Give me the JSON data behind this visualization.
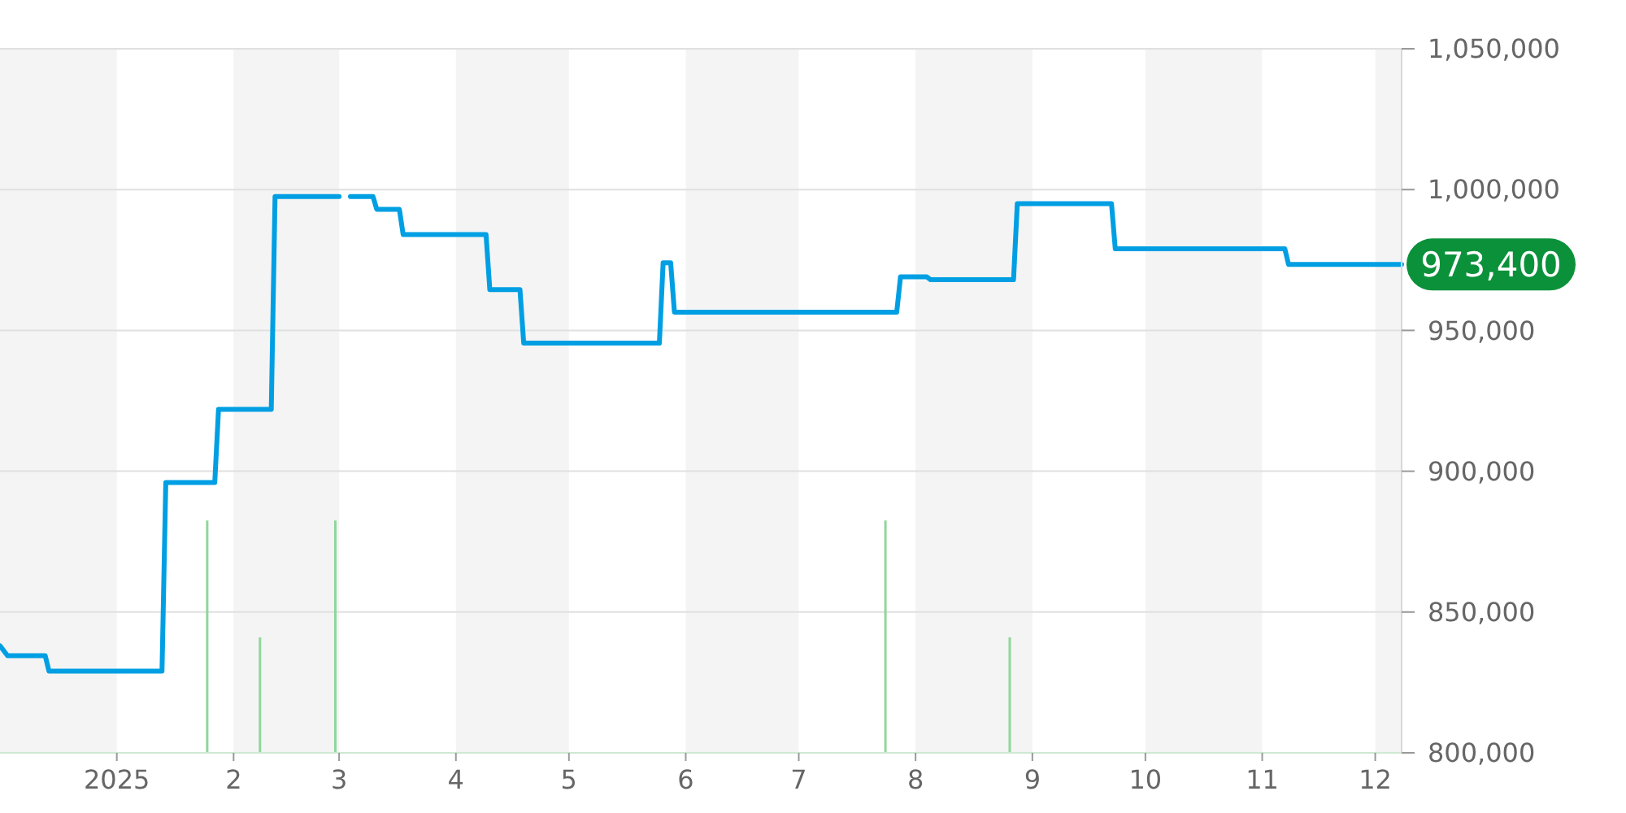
{
  "chart_data": {
    "type": "line",
    "xlim": [
      "2024-12-01",
      "2025-12-08"
    ],
    "xticks": [
      {
        "value": "2025-01-01",
        "label": "2025"
      },
      {
        "value": "2025-02-01",
        "label": "2"
      },
      {
        "value": "2025-03-01",
        "label": "3"
      },
      {
        "value": "2025-04-01",
        "label": "4"
      },
      {
        "value": "2025-05-01",
        "label": "5"
      },
      {
        "value": "2025-06-01",
        "label": "6"
      },
      {
        "value": "2025-07-01",
        "label": "7"
      },
      {
        "value": "2025-08-01",
        "label": "8"
      },
      {
        "value": "2025-09-01",
        "label": "9"
      },
      {
        "value": "2025-10-01",
        "label": "10"
      },
      {
        "value": "2025-11-01",
        "label": "11"
      },
      {
        "value": "2025-12-01",
        "label": "12"
      }
    ],
    "ylim": [
      800000,
      1050000
    ],
    "yticks": [
      {
        "value": 800000,
        "label": "800,000"
      },
      {
        "value": 850000,
        "label": "850,000"
      },
      {
        "value": 900000,
        "label": "900,000"
      },
      {
        "value": 950000,
        "label": "950,000"
      },
      {
        "value": 1000000,
        "label": "1,000,000"
      },
      {
        "value": 1050000,
        "label": "1,050,000"
      }
    ],
    "grid": "y",
    "bands": [
      {
        "axis": "x",
        "from": "2024-12-01",
        "to": "2025-01-01",
        "color": "#f4f4f4"
      },
      {
        "axis": "x",
        "from": "2025-02-01",
        "to": "2025-03-01",
        "color": "#f4f4f4"
      },
      {
        "axis": "x",
        "from": "2025-04-01",
        "to": "2025-05-01",
        "color": "#f4f4f4"
      },
      {
        "axis": "x",
        "from": "2025-06-01",
        "to": "2025-07-01",
        "color": "#f4f4f4"
      },
      {
        "axis": "x",
        "from": "2025-08-01",
        "to": "2025-09-01",
        "color": "#f4f4f4"
      },
      {
        "axis": "x",
        "from": "2025-10-01",
        "to": "2025-11-01",
        "color": "#f4f4f4"
      },
      {
        "axis": "x",
        "from": "2025-12-01",
        "to": "2025-12-08",
        "color": "#f4f4f4"
      }
    ],
    "series": [
      {
        "type": "bar",
        "color": "#8fd69b",
        "x": [
          "2025-01-25",
          "2025-02-08",
          "2025-02-28",
          "2025-07-24",
          "2025-08-26"
        ],
        "values": [
          882500,
          841000,
          882500,
          882500,
          841000
        ]
      },
      {
        "color": "#009fe3",
        "x": [
          "2024-12-01",
          "2024-12-03",
          "2024-12-13",
          "2024-12-14",
          "2025-01-13",
          "2025-01-14",
          "2025-01-27",
          "2025-01-28",
          "2025-02-11",
          "2025-02-12",
          "2025-03-01",
          "2025-03-02",
          "2025-03-04",
          "2025-03-10",
          "2025-03-11",
          "2025-03-17",
          "2025-03-18",
          "2025-04-09",
          "2025-04-10",
          "2025-04-18",
          "2025-04-19",
          "2025-05-25",
          "2025-05-26",
          "2025-05-28",
          "2025-05-29",
          "2025-07-27",
          "2025-07-28",
          "2025-08-04",
          "2025-08-05",
          "2025-08-27",
          "2025-08-28",
          "2025-09-22",
          "2025-09-23",
          "2025-11-07",
          "2025-11-08",
          "2025-12-08"
        ],
        "values": [
          838000,
          834500,
          834500,
          829000,
          829000,
          896000,
          896000,
          922000,
          922000,
          997500,
          997500,
          null,
          997500,
          997500,
          993000,
          993000,
          984000,
          984000,
          964500,
          964500,
          945500,
          945500,
          974000,
          974000,
          956500,
          956500,
          969000,
          969000,
          968000,
          968000,
          995000,
          995000,
          979000,
          979000,
          973400,
          973400
        ]
      }
    ],
    "annotations": [
      {
        "text": "973,400",
        "x": "2025-12-08",
        "y": 973400
      }
    ]
  }
}
